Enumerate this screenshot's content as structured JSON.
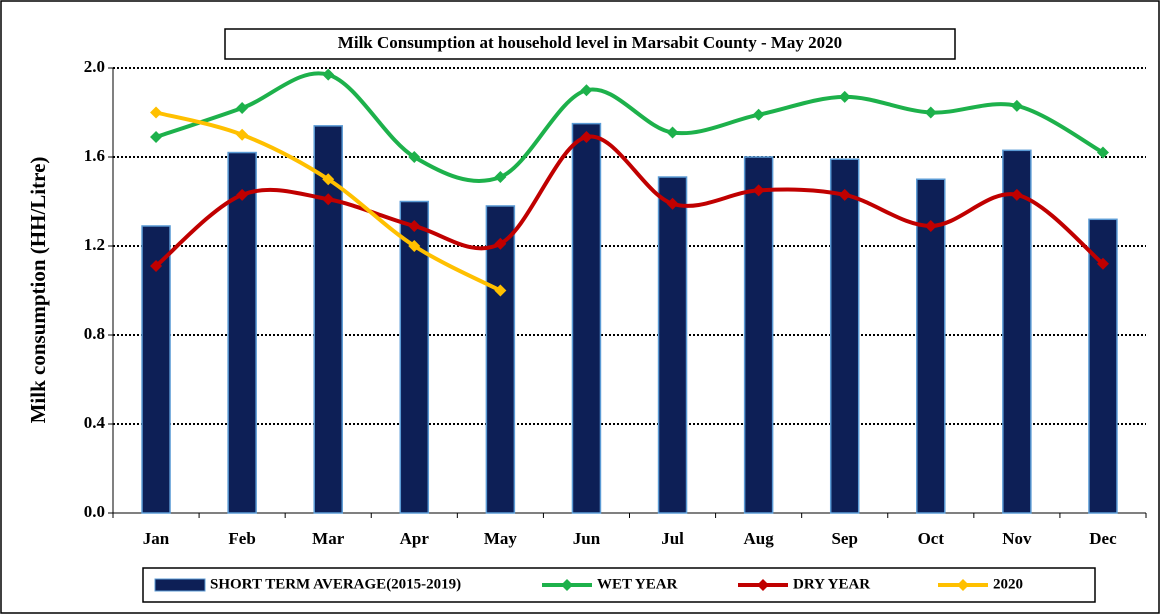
{
  "chart_data": {
    "type": "bar_line",
    "title": "Milk Consumption at household level in Marsabit County - May 2020",
    "y_label": "Milk consumption (HH/Litre)",
    "categories": [
      "Jan",
      "Feb",
      "Mar",
      "Apr",
      "May",
      "Jun",
      "Jul",
      "Aug",
      "Sep",
      "Oct",
      "Nov",
      "Dec"
    ],
    "ylim": [
      0,
      2
    ],
    "yticks": [
      {
        "value": 0,
        "label": "0.0"
      },
      {
        "value": 0.4,
        "label": "0.4"
      },
      {
        "value": 0.8,
        "label": "0.8"
      },
      {
        "value": 1.2,
        "label": "1.2"
      },
      {
        "value": 1.6,
        "label": "1.6"
      },
      {
        "value": 2,
        "label": "2.0"
      }
    ],
    "grid": true,
    "legend": "bottom",
    "series": [
      {
        "name": "SHORT TERM AVERAGE(2015-2019)",
        "type": "bar",
        "color": "#0d1f56",
        "values": [
          1.29,
          1.62,
          1.74,
          1.4,
          1.38,
          1.75,
          1.51,
          1.6,
          1.59,
          1.5,
          1.63,
          1.32
        ]
      },
      {
        "name": "WET YEAR",
        "type": "line",
        "color": "#1db14b",
        "values": [
          1.69,
          1.82,
          1.97,
          1.6,
          1.51,
          1.9,
          1.71,
          1.79,
          1.87,
          1.8,
          1.83,
          1.62
        ]
      },
      {
        "name": "DRY YEAR",
        "type": "line",
        "color": "#c00000",
        "values": [
          1.11,
          1.43,
          1.41,
          1.29,
          1.21,
          1.69,
          1.39,
          1.45,
          1.43,
          1.29,
          1.43,
          1.12
        ]
      },
      {
        "name": "2020",
        "type": "line",
        "color": "#ffc000",
        "values": [
          1.8,
          1.7,
          1.5,
          1.2,
          1.0,
          null,
          null,
          null,
          null,
          null,
          null,
          null
        ]
      }
    ]
  }
}
